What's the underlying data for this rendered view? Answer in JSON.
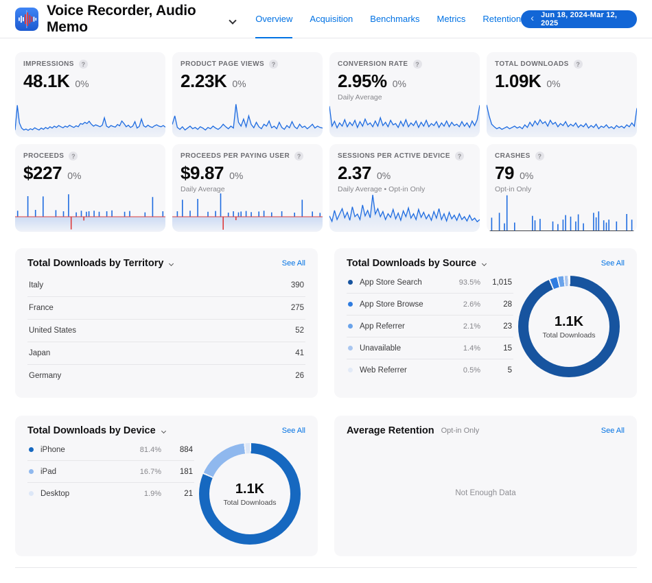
{
  "icons": {
    "help": "?",
    "chevron_left": "‹"
  },
  "header": {
    "app_name": "Voice Recorder, Audio Memo",
    "tabs": [
      {
        "label": "Overview"
      },
      {
        "label": "Acquisition"
      },
      {
        "label": "Benchmarks"
      },
      {
        "label": "Metrics"
      },
      {
        "label": "Retention"
      }
    ],
    "date_range": "Jun 18, 2024-Mar 12, 2025"
  },
  "metrics": [
    {
      "label": "IMPRESSIONS",
      "value": "48.1K",
      "delta": "0%",
      "subtitle": "",
      "spark": {
        "type": "line",
        "values": [
          18,
          95,
          40,
          24,
          18,
          21,
          17,
          22,
          19,
          25,
          21,
          18,
          24,
          20,
          26,
          22,
          28,
          24,
          30,
          26,
          32,
          28,
          25,
          30,
          27,
          33,
          29,
          26,
          31,
          28,
          38,
          36,
          42,
          38,
          45,
          36,
          30,
          34,
          31,
          28,
          33,
          56,
          30,
          26,
          32,
          29,
          27,
          35,
          31,
          46,
          38,
          28,
          33,
          26,
          30,
          44,
          24,
          29,
          52,
          31,
          27,
          33,
          28,
          26,
          31,
          34,
          30,
          28,
          32,
          27
        ]
      }
    },
    {
      "label": "PRODUCT PAGE VIEWS",
      "value": "2.23K",
      "delta": "0%",
      "subtitle": "",
      "spark": {
        "type": "line",
        "values": [
          35,
          62,
          26,
          20,
          28,
          18,
          24,
          30,
          22,
          26,
          20,
          28,
          24,
          18,
          26,
          22,
          30,
          24,
          20,
          26,
          36,
          28,
          22,
          30,
          24,
          98,
          42,
          30,
          52,
          28,
          62,
          35,
          25,
          42,
          28,
          22,
          36,
          30,
          46,
          25,
          30,
          22,
          42,
          26,
          20,
          32,
          25,
          44,
          28,
          22,
          36,
          26,
          30,
          22,
          28,
          36,
          24,
          30,
          26,
          24
        ]
      }
    },
    {
      "label": "CONVERSION RATE",
      "value": "2.95%",
      "delta": "0%",
      "subtitle": "Daily Average",
      "spark": {
        "type": "line",
        "values": [
          92,
          30,
          45,
          25,
          40,
          30,
          50,
          28,
          42,
          32,
          48,
          26,
          44,
          30,
          52,
          34,
          40,
          28,
          46,
          30,
          56,
          32,
          42,
          28,
          48,
          34,
          38,
          26,
          45,
          30,
          50,
          28,
          40,
          32,
          46,
          26,
          42,
          30,
          48,
          28,
          38,
          32,
          44,
          26,
          40,
          30,
          46,
          28,
          42,
          32,
          36,
          28,
          44,
          30,
          40,
          26,
          46,
          32,
          50,
          95
        ]
      }
    },
    {
      "label": "TOTAL DOWNLOADS",
      "value": "1.09K",
      "delta": "0%",
      "subtitle": "",
      "spark": {
        "type": "line",
        "values": [
          96,
          62,
          36,
          28,
          22,
          26,
          20,
          24,
          28,
          22,
          26,
          30,
          24,
          28,
          22,
          34,
          26,
          42,
          30,
          46,
          34,
          50,
          38,
          44,
          30,
          48,
          36,
          42,
          28,
          38,
          32,
          44,
          28,
          36,
          30,
          40,
          26,
          34,
          28,
          38,
          24,
          32,
          26,
          36,
          22,
          30,
          26,
          34,
          24,
          28,
          22,
          32,
          26,
          30,
          24,
          34,
          28,
          40,
          30,
          86
        ]
      }
    },
    {
      "label": "PROCEEDS",
      "value": "$227",
      "delta": "0%",
      "subtitle": "",
      "spark": {
        "type": "spikes",
        "baseline": true,
        "values": [
          0,
          22,
          0,
          0,
          0,
          75,
          0,
          0,
          25,
          0,
          0,
          74,
          0,
          0,
          0,
          0,
          24,
          0,
          0,
          20,
          0,
          82,
          -88,
          0,
          16,
          0,
          22,
          -26,
          18,
          20,
          0,
          22,
          0,
          18,
          0,
          0,
          20,
          0,
          23,
          0,
          0,
          0,
          0,
          18,
          0,
          21,
          0,
          0,
          0,
          0,
          0,
          16,
          0,
          0,
          72,
          0,
          0,
          0,
          20,
          0
        ]
      }
    },
    {
      "label": "PROCEEDS PER PAYING USER",
      "value": "$9.87",
      "delta": "0%",
      "subtitle": "Daily Average",
      "spark": {
        "type": "spikes",
        "baseline": true,
        "values": [
          0,
          0,
          20,
          0,
          62,
          0,
          0,
          22,
          0,
          0,
          65,
          0,
          0,
          0,
          18,
          0,
          0,
          21,
          0,
          85,
          -90,
          0,
          15,
          0,
          20,
          -24,
          16,
          19,
          0,
          21,
          0,
          17,
          0,
          0,
          19,
          0,
          22,
          0,
          0,
          16,
          0,
          0,
          0,
          20,
          0,
          0,
          0,
          0,
          15,
          0,
          0,
          62,
          0,
          0,
          0,
          19,
          0,
          0,
          14,
          0
        ]
      }
    },
    {
      "label": "SESSIONS PER ACTIVE DEVICE",
      "value": "2.37",
      "delta": "0%",
      "subtitle": "Daily Average • Opt-in Only",
      "spark": {
        "type": "line",
        "values": [
          40,
          25,
          55,
          30,
          45,
          60,
          35,
          50,
          28,
          65,
          38,
          45,
          30,
          70,
          40,
          55,
          35,
          98,
          45,
          60,
          38,
          52,
          30,
          46,
          36,
          58,
          32,
          48,
          28,
          54,
          38,
          62,
          34,
          46,
          30,
          58,
          36,
          50,
          32,
          44,
          28,
          52,
          34,
          60,
          30,
          46,
          26,
          50,
          32,
          42,
          28,
          46,
          30,
          38,
          26,
          42,
          28,
          34,
          24,
          30
        ]
      }
    },
    {
      "label": "CRASHES",
      "value": "79",
      "delta": "0%",
      "subtitle": "Opt-in Only",
      "spark": {
        "type": "spikes",
        "baseline": false,
        "values": [
          0,
          0,
          35,
          0,
          0,
          48,
          0,
          20,
          95,
          0,
          0,
          22,
          0,
          0,
          0,
          0,
          0,
          0,
          40,
          28,
          0,
          32,
          0,
          0,
          0,
          0,
          25,
          0,
          18,
          0,
          30,
          42,
          0,
          38,
          0,
          25,
          44,
          0,
          20,
          0,
          0,
          0,
          48,
          36,
          52,
          0,
          28,
          22,
          30,
          0,
          0,
          25,
          0,
          0,
          0,
          45,
          0,
          30,
          0,
          0
        ]
      }
    }
  ],
  "territory": {
    "title": "Total Downloads by Territory",
    "see_all": "See All",
    "rows": [
      {
        "label": "Italy",
        "value": "390"
      },
      {
        "label": "France",
        "value": "275"
      },
      {
        "label": "United States",
        "value": "52"
      },
      {
        "label": "Japan",
        "value": "41"
      },
      {
        "label": "Germany",
        "value": "26"
      }
    ]
  },
  "source": {
    "title": "Total Downloads by Source",
    "see_all": "See All",
    "rows": [
      {
        "label": "App Store Search",
        "pct": "93.5%",
        "value": "1,015",
        "color": "#17549f"
      },
      {
        "label": "App Store Browse",
        "pct": "2.6%",
        "value": "28",
        "color": "#2f7ce0"
      },
      {
        "label": "App Referrer",
        "pct": "2.1%",
        "value": "23",
        "color": "#6aa3ea"
      },
      {
        "label": "Unavailable",
        "pct": "1.4%",
        "value": "15",
        "color": "#a9c6f0"
      },
      {
        "label": "Web Referrer",
        "pct": "0.5%",
        "value": "5",
        "color": "#e2eaf7"
      }
    ],
    "donut": {
      "center_value": "1.1K",
      "center_label": "Total Downloads",
      "segments": [
        {
          "pct": 93.5,
          "color": "#17549f"
        },
        {
          "pct": 2.6,
          "color": "#2f7ce0"
        },
        {
          "pct": 2.1,
          "color": "#6aa3ea"
        },
        {
          "pct": 1.4,
          "color": "#a9c6f0"
        },
        {
          "pct": 0.5,
          "color": "#e2eaf7"
        }
      ]
    }
  },
  "device": {
    "title": "Total Downloads by Device",
    "see_all": "See All",
    "rows": [
      {
        "label": "iPhone",
        "pct": "81.4%",
        "value": "884",
        "color": "#1668c0"
      },
      {
        "label": "iPad",
        "pct": "16.7%",
        "value": "181",
        "color": "#8fb8ee"
      },
      {
        "label": "Desktop",
        "pct": "1.9%",
        "value": "21",
        "color": "#dde7f7"
      }
    ],
    "donut": {
      "center_value": "1.1K",
      "center_label": "Total Downloads",
      "segments": [
        {
          "pct": 81.4,
          "color": "#1668c0"
        },
        {
          "pct": 16.7,
          "color": "#8fb8ee"
        },
        {
          "pct": 1.9,
          "color": "#dde7f7"
        }
      ]
    }
  },
  "retention": {
    "title": "Average Retention",
    "badge": "Opt-in Only",
    "see_all": "See All",
    "empty": "Not Enough Data"
  }
}
